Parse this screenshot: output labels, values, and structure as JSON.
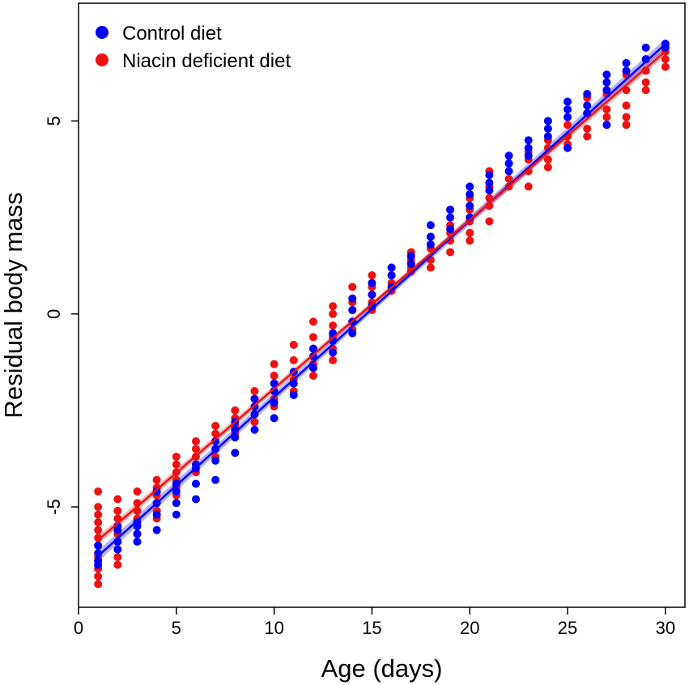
{
  "chart_data": {
    "type": "scatter",
    "xlabel": "Age (days)",
    "ylabel": "Residual body mass",
    "xlim": [
      0,
      31
    ],
    "ylim": [
      -7.6,
      8.05
    ],
    "xticks": [
      0,
      5,
      10,
      15,
      20,
      25,
      30
    ],
    "yticks": [
      -5,
      0,
      5
    ],
    "legend_position": "top-left",
    "series": [
      {
        "name": "Control diet",
        "color": "#0000ff",
        "fit": {
          "intercept": -6.73,
          "slope": 0.4574,
          "ci_halfwidth": 0.09
        },
        "points": [
          [
            1,
            -6.2
          ],
          [
            1,
            -6.4
          ],
          [
            1,
            -6.0
          ],
          [
            1,
            -6.5
          ],
          [
            2,
            -5.6
          ],
          [
            2,
            -5.9
          ],
          [
            2,
            -6.1
          ],
          [
            2,
            -5.5
          ],
          [
            3,
            -5.4
          ],
          [
            3,
            -5.7
          ],
          [
            3,
            -5.9
          ],
          [
            3,
            -5.5
          ],
          [
            4,
            -5.6
          ],
          [
            4,
            -4.9
          ],
          [
            4,
            -5.2
          ],
          [
            4,
            -4.6
          ],
          [
            5,
            -5.2
          ],
          [
            5,
            -4.9
          ],
          [
            5,
            -4.6
          ],
          [
            5,
            -4.4
          ],
          [
            6,
            -4.8
          ],
          [
            6,
            -4.4
          ],
          [
            6,
            -4.0
          ],
          [
            6,
            -3.9
          ],
          [
            7,
            -4.3
          ],
          [
            7,
            -3.8
          ],
          [
            7,
            -3.5
          ],
          [
            7,
            -3.3
          ],
          [
            8,
            -3.6
          ],
          [
            8,
            -3.2
          ],
          [
            8,
            -3.0
          ],
          [
            8,
            -2.8
          ],
          [
            9,
            -3.0
          ],
          [
            9,
            -2.6
          ],
          [
            9,
            -2.4
          ],
          [
            9,
            -2.2
          ],
          [
            10,
            -2.7
          ],
          [
            10,
            -2.3
          ],
          [
            10,
            -2.0
          ],
          [
            10,
            -1.8
          ],
          [
            11,
            -2.1
          ],
          [
            11,
            -1.8
          ],
          [
            11,
            -1.5
          ],
          [
            12,
            -1.4
          ],
          [
            12,
            -1.1
          ],
          [
            12,
            -0.9
          ],
          [
            13,
            -1.0
          ],
          [
            13,
            -0.7
          ],
          [
            13,
            -0.5
          ],
          [
            14,
            -0.5
          ],
          [
            14,
            -0.2
          ],
          [
            14,
            0.1
          ],
          [
            14,
            0.4
          ],
          [
            15,
            0.2
          ],
          [
            15,
            0.5
          ],
          [
            15,
            0.8
          ],
          [
            16,
            0.7
          ],
          [
            16,
            1.0
          ],
          [
            16,
            1.2
          ],
          [
            17,
            1.3
          ],
          [
            17,
            1.5
          ],
          [
            18,
            1.8
          ],
          [
            18,
            2.0
          ],
          [
            18,
            2.3
          ],
          [
            19,
            2.2
          ],
          [
            19,
            2.5
          ],
          [
            19,
            2.7
          ],
          [
            20,
            2.8
          ],
          [
            20,
            3.1
          ],
          [
            20,
            3.3
          ],
          [
            20,
            2.5
          ],
          [
            21,
            3.2
          ],
          [
            21,
            3.4
          ],
          [
            21,
            3.6
          ],
          [
            22,
            3.7
          ],
          [
            22,
            3.9
          ],
          [
            22,
            4.1
          ],
          [
            23,
            4.3
          ],
          [
            23,
            4.5
          ],
          [
            23,
            4.1
          ],
          [
            24,
            4.6
          ],
          [
            24,
            4.8
          ],
          [
            24,
            5.0
          ],
          [
            25,
            5.1
          ],
          [
            25,
            5.3
          ],
          [
            25,
            5.5
          ],
          [
            25,
            4.3
          ],
          [
            26,
            5.4
          ],
          [
            26,
            5.7
          ],
          [
            26,
            5.2
          ],
          [
            27,
            5.8
          ],
          [
            27,
            6.0
          ],
          [
            27,
            6.2
          ],
          [
            27,
            4.9
          ],
          [
            28,
            6.3
          ],
          [
            28,
            6.5
          ],
          [
            29,
            6.6
          ],
          [
            29,
            6.9
          ],
          [
            30,
            6.9
          ],
          [
            30,
            7.0
          ]
        ]
      },
      {
        "name": "Niacin deficient diet",
        "color": "#ee1111",
        "fit": {
          "intercept": -6.3,
          "slope": 0.4367,
          "ci_halfwidth": 0.07
        },
        "points": [
          [
            1,
            -4.6
          ],
          [
            1,
            -5.0
          ],
          [
            1,
            -5.2
          ],
          [
            1,
            -5.4
          ],
          [
            1,
            -5.6
          ],
          [
            1,
            -5.8
          ],
          [
            1,
            -6.0
          ],
          [
            1,
            -6.3
          ],
          [
            1,
            -6.6
          ],
          [
            1,
            -6.8
          ],
          [
            1,
            -7.0
          ],
          [
            2,
            -4.8
          ],
          [
            2,
            -5.1
          ],
          [
            2,
            -5.3
          ],
          [
            2,
            -5.5
          ],
          [
            2,
            -5.7
          ],
          [
            2,
            -5.9
          ],
          [
            2,
            -6.1
          ],
          [
            2,
            -6.3
          ],
          [
            2,
            -6.5
          ],
          [
            3,
            -4.6
          ],
          [
            3,
            -4.9
          ],
          [
            3,
            -5.1
          ],
          [
            3,
            -5.3
          ],
          [
            3,
            -5.5
          ],
          [
            3,
            -5.7
          ],
          [
            4,
            -4.3
          ],
          [
            4,
            -4.5
          ],
          [
            4,
            -4.7
          ],
          [
            4,
            -4.9
          ],
          [
            4,
            -5.1
          ],
          [
            4,
            -5.3
          ],
          [
            5,
            -3.7
          ],
          [
            5,
            -3.9
          ],
          [
            5,
            -4.1
          ],
          [
            5,
            -4.3
          ],
          [
            5,
            -4.5
          ],
          [
            5,
            -4.7
          ],
          [
            6,
            -3.3
          ],
          [
            6,
            -3.5
          ],
          [
            6,
            -3.7
          ],
          [
            6,
            -3.9
          ],
          [
            6,
            -4.1
          ],
          [
            7,
            -2.9
          ],
          [
            7,
            -3.1
          ],
          [
            7,
            -3.3
          ],
          [
            7,
            -3.5
          ],
          [
            7,
            -3.7
          ],
          [
            8,
            -2.5
          ],
          [
            8,
            -2.7
          ],
          [
            8,
            -2.9
          ],
          [
            8,
            -3.1
          ],
          [
            9,
            -2.0
          ],
          [
            9,
            -2.2
          ],
          [
            9,
            -2.4
          ],
          [
            9,
            -2.6
          ],
          [
            9,
            -2.8
          ],
          [
            10,
            -1.3
          ],
          [
            10,
            -1.6
          ],
          [
            10,
            -1.8
          ],
          [
            10,
            -2.0
          ],
          [
            10,
            -2.2
          ],
          [
            10,
            -2.4
          ],
          [
            11,
            -0.8
          ],
          [
            11,
            -1.2
          ],
          [
            11,
            -1.5
          ],
          [
            11,
            -1.7
          ],
          [
            11,
            -2.0
          ],
          [
            12,
            -0.2
          ],
          [
            12,
            -0.6
          ],
          [
            12,
            -0.9
          ],
          [
            12,
            -1.1
          ],
          [
            12,
            -1.3
          ],
          [
            12,
            -1.6
          ],
          [
            13,
            0.2
          ],
          [
            13,
            0.0
          ],
          [
            13,
            -0.3
          ],
          [
            13,
            -0.6
          ],
          [
            13,
            -0.9
          ],
          [
            13,
            -1.2
          ],
          [
            14,
            0.7
          ],
          [
            14,
            0.3
          ],
          [
            14,
            0.1
          ],
          [
            14,
            -0.2
          ],
          [
            14,
            -0.4
          ],
          [
            15,
            1.0
          ],
          [
            15,
            0.7
          ],
          [
            15,
            0.5
          ],
          [
            15,
            0.3
          ],
          [
            15,
            0.1
          ],
          [
            16,
            1.2
          ],
          [
            16,
            1.0
          ],
          [
            16,
            0.8
          ],
          [
            16,
            0.6
          ],
          [
            17,
            1.6
          ],
          [
            17,
            1.4
          ],
          [
            17,
            1.2
          ],
          [
            17,
            1.1
          ],
          [
            18,
            2.0
          ],
          [
            18,
            1.7
          ],
          [
            18,
            1.4
          ],
          [
            18,
            1.2
          ],
          [
            19,
            2.7
          ],
          [
            19,
            2.3
          ],
          [
            19,
            2.1
          ],
          [
            19,
            1.9
          ],
          [
            19,
            1.6
          ],
          [
            20,
            3.0
          ],
          [
            20,
            2.7
          ],
          [
            20,
            2.4
          ],
          [
            20,
            2.1
          ],
          [
            20,
            1.9
          ],
          [
            21,
            3.7
          ],
          [
            21,
            3.3
          ],
          [
            21,
            3.0
          ],
          [
            21,
            2.8
          ],
          [
            21,
            2.4
          ],
          [
            22,
            3.7
          ],
          [
            22,
            3.5
          ],
          [
            22,
            3.3
          ],
          [
            23,
            4.2
          ],
          [
            23,
            4.0
          ],
          [
            23,
            3.7
          ],
          [
            23,
            3.3
          ],
          [
            24,
            4.5
          ],
          [
            24,
            4.3
          ],
          [
            24,
            4.0
          ],
          [
            24,
            3.8
          ],
          [
            25,
            4.9
          ],
          [
            25,
            4.6
          ],
          [
            25,
            4.4
          ],
          [
            26,
            5.6
          ],
          [
            26,
            5.2
          ],
          [
            26,
            4.8
          ],
          [
            26,
            4.6
          ],
          [
            27,
            5.7
          ],
          [
            27,
            5.3
          ],
          [
            27,
            5.1
          ],
          [
            27,
            4.9
          ],
          [
            28,
            6.2
          ],
          [
            28,
            5.8
          ],
          [
            28,
            5.4
          ],
          [
            28,
            5.1
          ],
          [
            28,
            4.9
          ],
          [
            29,
            6.6
          ],
          [
            29,
            6.3
          ],
          [
            29,
            6.0
          ],
          [
            29,
            5.8
          ],
          [
            30,
            6.8
          ],
          [
            30,
            6.6
          ],
          [
            30,
            6.4
          ]
        ]
      }
    ]
  }
}
